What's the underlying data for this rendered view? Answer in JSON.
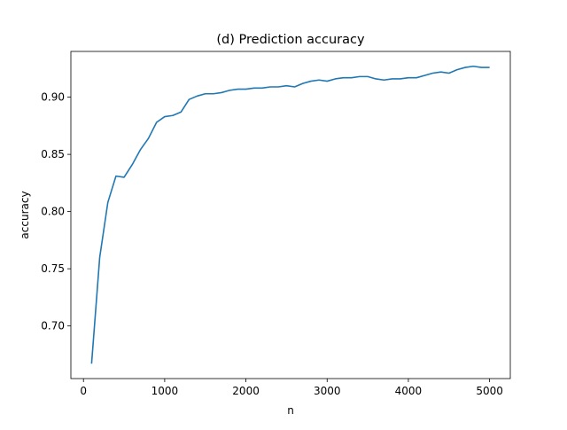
{
  "chart_data": {
    "type": "line",
    "title": "(d) Prediction accuracy",
    "xlabel": "n",
    "ylabel": "accuracy",
    "xlim": [
      -155,
      5255
    ],
    "ylim": [
      0.654,
      0.94
    ],
    "xticks": [
      0,
      1000,
      2000,
      3000,
      4000,
      5000
    ],
    "xtick_labels": [
      "0",
      "1000",
      "2000",
      "3000",
      "4000",
      "5000"
    ],
    "yticks": [
      0.7,
      0.75,
      0.8,
      0.85,
      0.9
    ],
    "ytick_labels": [
      "0.70",
      "0.75",
      "0.80",
      "0.85",
      "0.90"
    ],
    "grid": false,
    "legend": "none",
    "color": "#1f77b4",
    "series": [
      {
        "x": [
          100,
          200,
          300,
          400,
          500,
          600,
          700,
          800,
          900,
          1000,
          1100,
          1200,
          1300,
          1400,
          1500,
          1600,
          1700,
          1800,
          1900,
          2000,
          2100,
          2200,
          2300,
          2400,
          2500,
          2600,
          2700,
          2800,
          2900,
          3000,
          3100,
          3200,
          3300,
          3400,
          3500,
          3600,
          3700,
          3800,
          3900,
          4000,
          4100,
          4200,
          4300,
          4400,
          4500,
          4600,
          4700,
          4800,
          4900,
          5000
        ],
        "values": [
          0.667,
          0.76,
          0.808,
          0.831,
          0.83,
          0.841,
          0.854,
          0.864,
          0.878,
          0.883,
          0.884,
          0.887,
          0.898,
          0.901,
          0.903,
          0.903,
          0.904,
          0.906,
          0.907,
          0.907,
          0.908,
          0.908,
          0.909,
          0.909,
          0.91,
          0.909,
          0.912,
          0.914,
          0.915,
          0.914,
          0.916,
          0.917,
          0.917,
          0.918,
          0.918,
          0.916,
          0.915,
          0.916,
          0.916,
          0.917,
          0.917,
          0.919,
          0.921,
          0.922,
          0.921,
          0.924,
          0.926,
          0.927,
          0.926,
          0.926
        ]
      }
    ]
  }
}
